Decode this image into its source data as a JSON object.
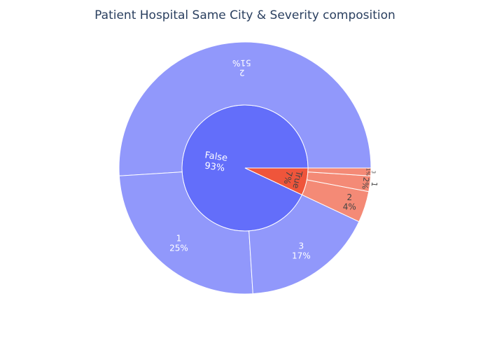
{
  "chart_data": {
    "type": "sunburst",
    "title": "Patient Hospital Same City & Severity composition",
    "center_label": "",
    "colors": {
      "False": "#636efa",
      "False_children": "#9198fb",
      "True": "#ef553b",
      "True_children": "#f48a76"
    },
    "inner": [
      {
        "label": "False",
        "percent_label": "93%",
        "value": 93
      },
      {
        "label": "True",
        "percent_label": "7%",
        "value": 7
      }
    ],
    "outer": [
      {
        "parent": "False",
        "label": "2",
        "percent_label": "51%",
        "value": 51
      },
      {
        "parent": "False",
        "label": "1",
        "percent_label": "25%",
        "value": 25
      },
      {
        "parent": "False",
        "label": "3",
        "percent_label": "17%",
        "value": 17
      },
      {
        "parent": "True",
        "label": "2",
        "percent_label": "4%",
        "value": 4
      },
      {
        "parent": "True",
        "label": "1",
        "percent_label": "2%",
        "value": 2
      },
      {
        "parent": "True",
        "label": "3",
        "percent_label": "1%",
        "value": 1
      }
    ]
  }
}
